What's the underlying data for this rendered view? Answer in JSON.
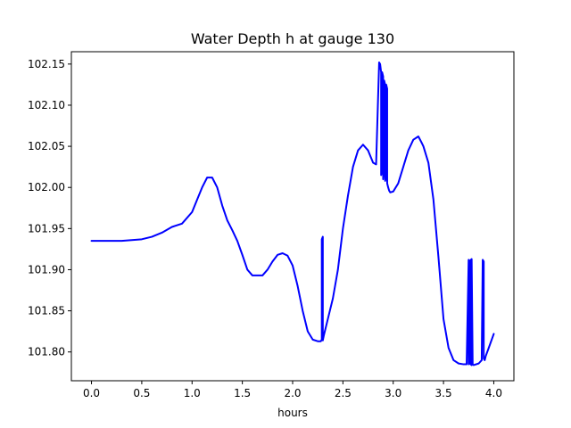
{
  "chart_data": {
    "type": "line",
    "title": "Water Depth h at gauge 130",
    "xlabel": "hours",
    "ylabel": "",
    "xlim": [
      -0.2,
      4.2
    ],
    "ylim": [
      101.765,
      102.165
    ],
    "grid": false,
    "x_ticks": [
      0.0,
      0.5,
      1.0,
      1.5,
      2.0,
      2.5,
      3.0,
      3.5,
      4.0
    ],
    "x_tick_labels": [
      "0.0",
      "0.5",
      "1.0",
      "1.5",
      "2.0",
      "2.5",
      "3.0",
      "3.5",
      "4.0"
    ],
    "y_ticks": [
      101.8,
      101.85,
      101.9,
      101.95,
      102.0,
      102.05,
      102.1,
      102.15
    ],
    "y_tick_labels": [
      "101.80",
      "101.85",
      "101.90",
      "101.95",
      "102.00",
      "102.05",
      "102.10",
      "102.15"
    ],
    "series_color": "#0000ff",
    "series": [
      {
        "x": [
          0.0,
          0.1,
          0.2,
          0.3,
          0.4,
          0.5,
          0.6,
          0.7,
          0.8,
          0.9,
          1.0,
          1.05,
          1.1,
          1.15,
          1.2,
          1.25,
          1.3,
          1.35,
          1.4,
          1.45,
          1.5,
          1.55,
          1.6,
          1.7,
          1.75,
          1.8,
          1.85,
          1.9,
          1.95,
          2.0,
          2.05,
          2.1,
          2.15,
          2.2,
          2.25,
          2.28,
          2.29,
          2.29,
          2.3,
          2.3,
          2.31,
          2.35,
          2.4,
          2.45,
          2.5,
          2.55,
          2.6,
          2.65,
          2.7,
          2.75,
          2.8,
          2.83,
          2.86,
          2.87,
          2.88,
          2.88,
          2.89,
          2.89,
          2.9,
          2.9,
          2.91,
          2.91,
          2.92,
          2.92,
          2.93,
          2.93,
          2.94,
          2.94,
          2.95,
          2.96,
          2.97,
          3.0,
          3.05,
          3.1,
          3.15,
          3.2,
          3.25,
          3.28,
          3.3,
          3.35,
          3.4,
          3.45,
          3.5,
          3.55,
          3.6,
          3.65,
          3.7,
          3.73,
          3.75,
          3.75,
          3.76,
          3.76,
          3.77,
          3.77,
          3.78,
          3.78,
          3.79,
          3.8,
          3.85,
          3.88,
          3.89,
          3.9,
          3.9,
          3.91,
          3.92,
          3.95,
          4.0
        ],
        "y": [
          101.935,
          101.935,
          101.935,
          101.935,
          101.936,
          101.937,
          101.94,
          101.945,
          101.952,
          101.956,
          101.97,
          101.985,
          102.0,
          102.012,
          102.012,
          102.0,
          101.978,
          101.96,
          101.948,
          101.935,
          101.918,
          101.9,
          101.893,
          101.893,
          101.9,
          101.91,
          101.918,
          101.92,
          101.917,
          101.905,
          101.88,
          101.85,
          101.825,
          101.815,
          101.813,
          101.813,
          101.815,
          101.937,
          101.94,
          101.814,
          101.82,
          101.84,
          101.865,
          101.9,
          101.95,
          101.99,
          102.025,
          102.045,
          102.052,
          102.045,
          102.03,
          102.028,
          102.152,
          102.15,
          102.14,
          102.015,
          102.02,
          102.14,
          102.135,
          102.01,
          102.025,
          102.13,
          102.125,
          102.008,
          102.015,
          102.125,
          102.12,
          102.005,
          102.0,
          101.996,
          101.994,
          101.995,
          102.005,
          102.025,
          102.045,
          102.058,
          102.062,
          102.055,
          102.05,
          102.03,
          101.985,
          101.915,
          101.84,
          101.805,
          101.79,
          101.786,
          101.785,
          101.785,
          101.912,
          101.785,
          101.786,
          101.91,
          101.912,
          101.785,
          101.784,
          101.913,
          101.785,
          101.784,
          101.786,
          101.79,
          101.912,
          101.91,
          101.792,
          101.79,
          101.795,
          101.805,
          101.822
        ]
      }
    ]
  }
}
